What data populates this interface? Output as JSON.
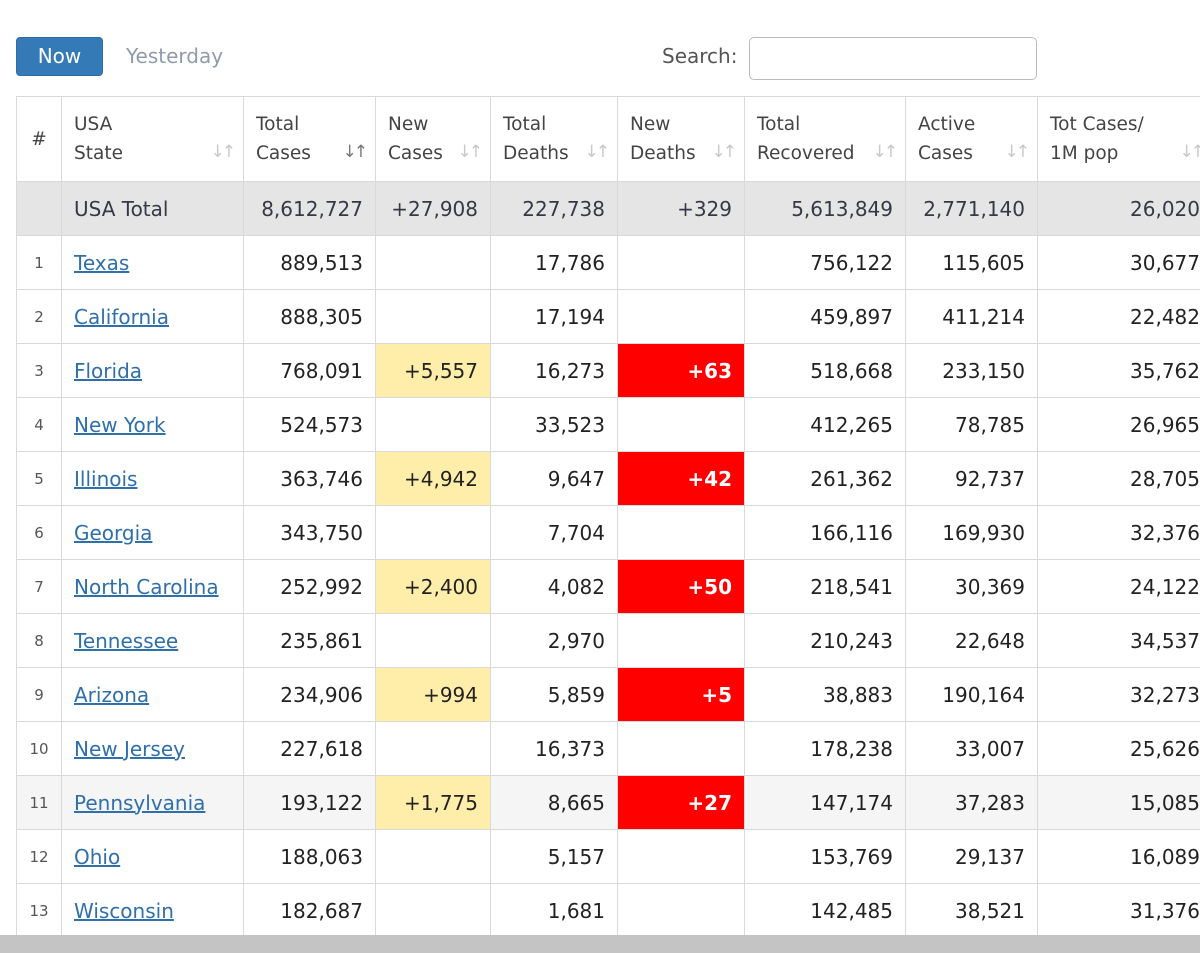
{
  "controls": {
    "now_label": "Now",
    "yesterday_label": "Yesterday",
    "search_label": "Search:",
    "search_value": ""
  },
  "columns": [
    {
      "line1": "#",
      "line2": ""
    },
    {
      "line1": "USA",
      "line2": "State"
    },
    {
      "line1": "Total",
      "line2": "Cases"
    },
    {
      "line1": "New",
      "line2": "Cases"
    },
    {
      "line1": "Total",
      "line2": "Deaths"
    },
    {
      "line1": "New",
      "line2": "Deaths"
    },
    {
      "line1": "Total",
      "line2": "Recovered"
    },
    {
      "line1": "Active",
      "line2": "Cases"
    },
    {
      "line1": "Tot Cases/",
      "line2": "1M pop"
    }
  ],
  "sort_icon": "sort-arrows-icon",
  "total_row": {
    "label": "USA Total",
    "total_cases": "8,612,727",
    "new_cases": "+27,908",
    "total_deaths": "227,738",
    "new_deaths": "+329",
    "total_recovered": "5,613,849",
    "active_cases": "2,771,140",
    "per_million": "26,020"
  },
  "rows": [
    {
      "rank": "1",
      "state": "Texas",
      "total_cases": "889,513",
      "new_cases": "",
      "total_deaths": "17,786",
      "new_deaths": "",
      "total_recovered": "756,122",
      "active_cases": "115,605",
      "per_million": "30,677"
    },
    {
      "rank": "2",
      "state": "California",
      "total_cases": "888,305",
      "new_cases": "",
      "total_deaths": "17,194",
      "new_deaths": "",
      "total_recovered": "459,897",
      "active_cases": "411,214",
      "per_million": "22,482"
    },
    {
      "rank": "3",
      "state": "Florida",
      "total_cases": "768,091",
      "new_cases": "+5,557",
      "total_deaths": "16,273",
      "new_deaths": "+63",
      "total_recovered": "518,668",
      "active_cases": "233,150",
      "per_million": "35,762"
    },
    {
      "rank": "4",
      "state": "New York",
      "total_cases": "524,573",
      "new_cases": "",
      "total_deaths": "33,523",
      "new_deaths": "",
      "total_recovered": "412,265",
      "active_cases": "78,785",
      "per_million": "26,965"
    },
    {
      "rank": "5",
      "state": "Illinois",
      "total_cases": "363,746",
      "new_cases": "+4,942",
      "total_deaths": "9,647",
      "new_deaths": "+42",
      "total_recovered": "261,362",
      "active_cases": "92,737",
      "per_million": "28,705"
    },
    {
      "rank": "6",
      "state": "Georgia",
      "total_cases": "343,750",
      "new_cases": "",
      "total_deaths": "7,704",
      "new_deaths": "",
      "total_recovered": "166,116",
      "active_cases": "169,930",
      "per_million": "32,376"
    },
    {
      "rank": "7",
      "state": "North Carolina",
      "total_cases": "252,992",
      "new_cases": "+2,400",
      "total_deaths": "4,082",
      "new_deaths": "+50",
      "total_recovered": "218,541",
      "active_cases": "30,369",
      "per_million": "24,122"
    },
    {
      "rank": "8",
      "state": "Tennessee",
      "total_cases": "235,861",
      "new_cases": "",
      "total_deaths": "2,970",
      "new_deaths": "",
      "total_recovered": "210,243",
      "active_cases": "22,648",
      "per_million": "34,537"
    },
    {
      "rank": "9",
      "state": "Arizona",
      "total_cases": "234,906",
      "new_cases": "+994",
      "total_deaths": "5,859",
      "new_deaths": "+5",
      "total_recovered": "38,883",
      "active_cases": "190,164",
      "per_million": "32,273"
    },
    {
      "rank": "10",
      "state": "New Jersey",
      "total_cases": "227,618",
      "new_cases": "",
      "total_deaths": "16,373",
      "new_deaths": "",
      "total_recovered": "178,238",
      "active_cases": "33,007",
      "per_million": "25,626"
    },
    {
      "rank": "11",
      "state": "Pennsylvania",
      "total_cases": "193,122",
      "new_cases": "+1,775",
      "total_deaths": "8,665",
      "new_deaths": "+27",
      "total_recovered": "147,174",
      "active_cases": "37,283",
      "per_million": "15,085"
    },
    {
      "rank": "12",
      "state": "Ohio",
      "total_cases": "188,063",
      "new_cases": "",
      "total_deaths": "5,157",
      "new_deaths": "",
      "total_recovered": "153,769",
      "active_cases": "29,137",
      "per_million": "16,089"
    },
    {
      "rank": "13",
      "state": "Wisconsin",
      "total_cases": "182,687",
      "new_cases": "",
      "total_deaths": "1,681",
      "new_deaths": "",
      "total_recovered": "142,485",
      "active_cases": "38,521",
      "per_million": "31,376"
    }
  ],
  "colors": {
    "primary_button": "#337ab7",
    "new_cases_highlight": "#ffeeaa",
    "new_deaths_highlight": "#ff0000",
    "total_row_bg": "#e5e5e5",
    "link": "#2f6faa"
  }
}
